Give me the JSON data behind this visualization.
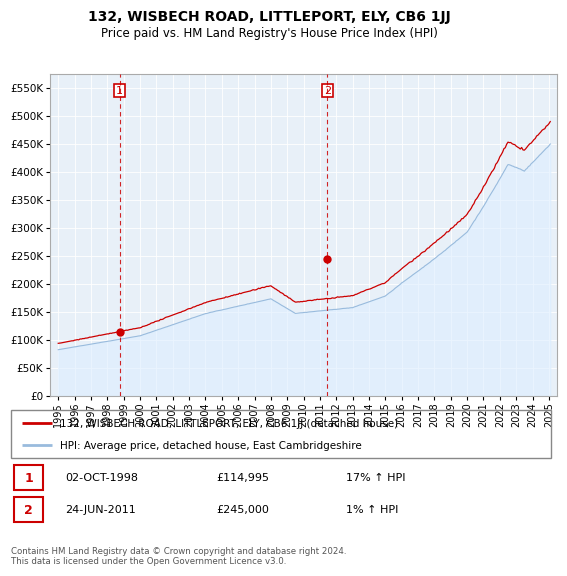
{
  "title": "132, WISBECH ROAD, LITTLEPORT, ELY, CB6 1JJ",
  "subtitle": "Price paid vs. HM Land Registry's House Price Index (HPI)",
  "legend_line1": "132, WISBECH ROAD, LITTLEPORT, ELY, CB6 1JJ (detached house)",
  "legend_line2": "HPI: Average price, detached house, East Cambridgeshire",
  "transaction1_date": "02-OCT-1998",
  "transaction1_price": "£114,995",
  "transaction1_hpi": "17% ↑ HPI",
  "transaction2_date": "24-JUN-2011",
  "transaction2_price": "£245,000",
  "transaction2_hpi": "1% ↑ HPI",
  "footer": "Contains HM Land Registry data © Crown copyright and database right 2024.\nThis data is licensed under the Open Government Licence v3.0.",
  "price_line_color": "#cc0000",
  "hpi_line_color": "#99bbdd",
  "hpi_fill_color": "#ddeeff",
  "vline_color": "#cc0000",
  "marker_color": "#cc0000",
  "ylim_min": 0,
  "ylim_max": 575000,
  "yticks": [
    0,
    50000,
    100000,
    150000,
    200000,
    250000,
    300000,
    350000,
    400000,
    450000,
    500000,
    550000
  ],
  "transaction1_x": 1998.75,
  "transaction1_y": 114995,
  "transaction2_x": 2011.46,
  "transaction2_y": 245000,
  "xlim_min": 1994.5,
  "xlim_max": 2025.5
}
